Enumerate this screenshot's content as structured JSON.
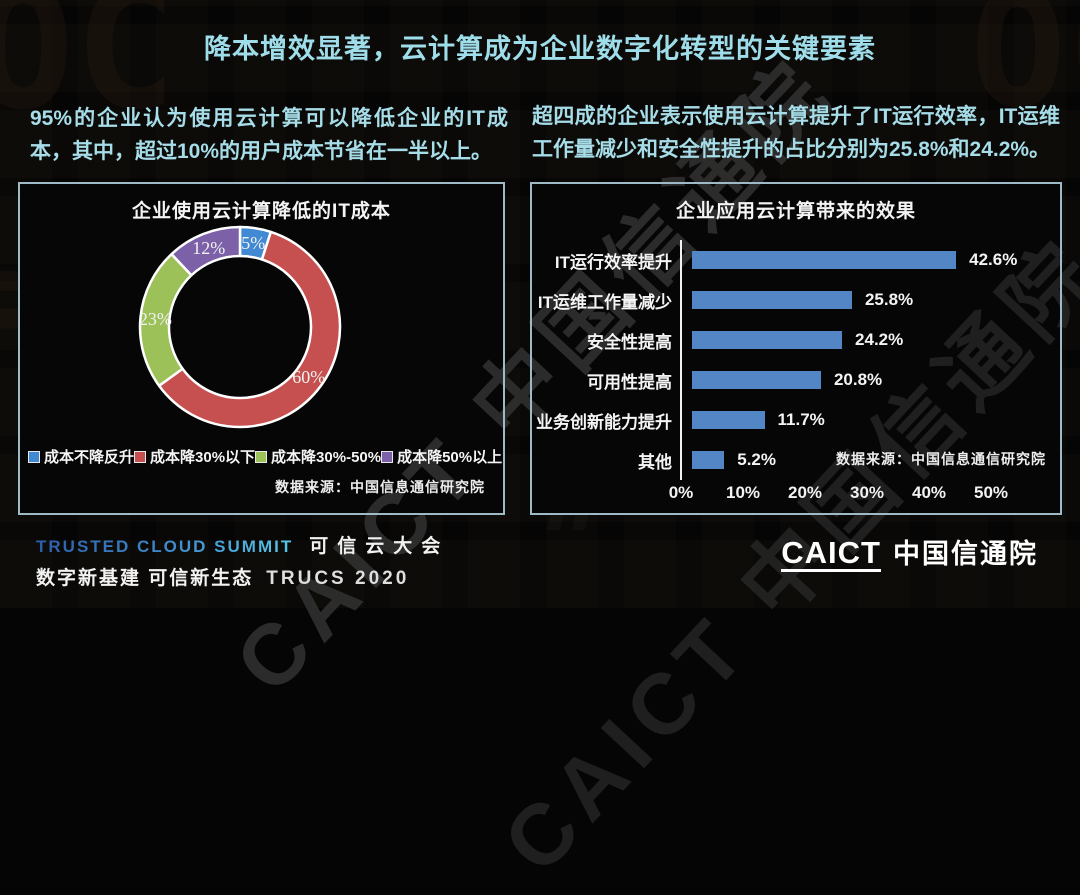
{
  "slide": {
    "title": "降本增效显著，云计算成为企业数字化转型的关键要素",
    "left_paragraph": "95%的企业认为使用云计算可以降低企业的IT成本，其中，超过10%的用户成本节省在一半以上。",
    "right_paragraph": "超四成的企业表示使用云计算提升了IT运行效率，IT运维工作量减少和安全性提升的占比分别为25.8%和24.2%。"
  },
  "chart_data": [
    {
      "type": "pie",
      "subtype": "donut",
      "title": "企业使用云计算降低的IT成本",
      "labels": [
        "成本不降反升",
        "成本降30%以下",
        "成本降30%-50%",
        "成本降50%以上"
      ],
      "values": [
        5,
        60,
        23,
        12
      ],
      "slice_labels": [
        "5%",
        "60%",
        "23%",
        "12%"
      ],
      "colors": [
        "#4289d3",
        "#c5504f",
        "#9cc159",
        "#7c61a9"
      ],
      "start_angle_deg": 0,
      "direction": "clockwise",
      "legend_position": "bottom",
      "source": "数据来源：中国信息通信研究院"
    },
    {
      "type": "bar",
      "orientation": "horizontal",
      "title": "企业应用云计算带来的效果",
      "categories": [
        "IT运行效率提升",
        "IT运维工作量减少",
        "安全性提高",
        "可用性提高",
        "业务创新能力提升",
        "其他"
      ],
      "values": [
        42.6,
        25.8,
        24.2,
        20.8,
        11.7,
        5.2
      ],
      "value_labels": [
        "42.6%",
        "25.8%",
        "24.2%",
        "20.8%",
        "11.7%",
        "5.2%"
      ],
      "xlim": [
        0,
        50
      ],
      "x_ticks": [
        "0%",
        "10%",
        "20%",
        "30%",
        "40%",
        "50%"
      ],
      "grid": false,
      "bar_color": "#5386c4",
      "source": "数据来源：中国信息通信研究院"
    }
  ],
  "footer": {
    "summit_en": "TRUSTED CLOUD SUMMIT",
    "summit_cn": "可信云大会",
    "tagline": "数字新基建 可信新生态",
    "event_code": "TRUCS 2020",
    "org_abbr": "CAICT",
    "org_cn": "中国信通院"
  },
  "watermark_text": "CAICT 中国信通院",
  "colors": {
    "background": "#050505",
    "title_text": "#9edde9",
    "body_text": "#a6dde8",
    "panel_border": "#9fb9c6",
    "bar_blue": "#5386c4",
    "donut_blue": "#4289d3",
    "donut_red": "#c5504f",
    "donut_green": "#9cc159",
    "donut_purple": "#7c61a9"
  }
}
